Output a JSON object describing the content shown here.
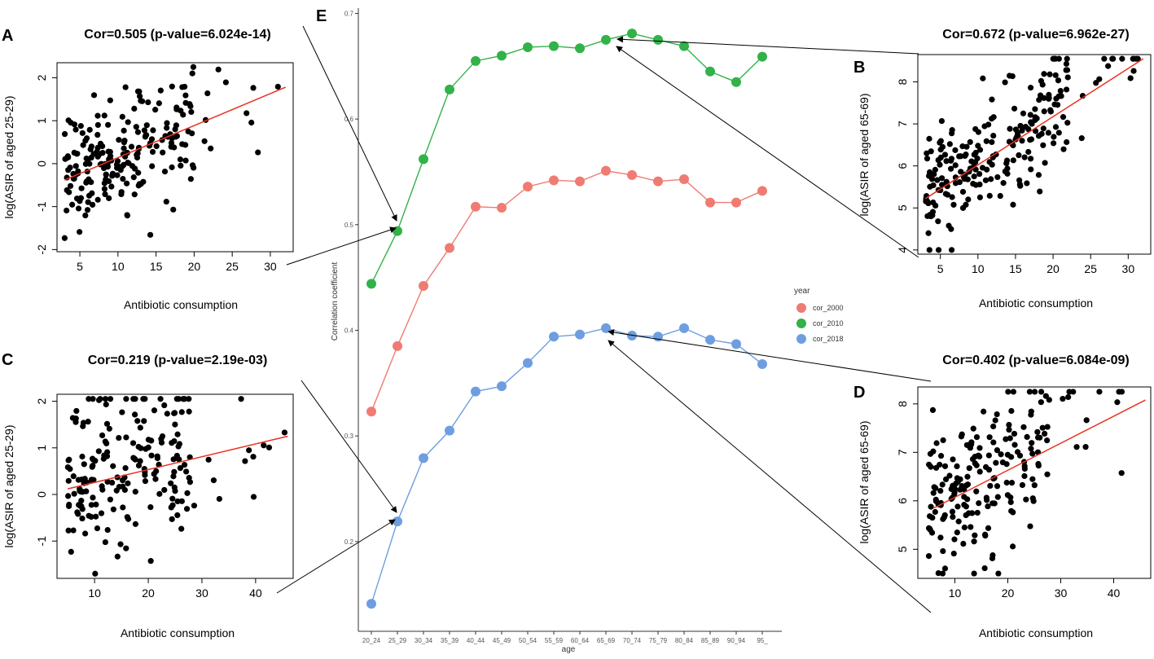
{
  "colors": {
    "c2000": "#f07b72",
    "c2010": "#32b249",
    "c2018": "#6e9ee0",
    "fit": "#e8311f",
    "point": "#000000"
  },
  "chart_data": [
    {
      "id": "E",
      "panel_label": "E",
      "type": "line",
      "title": "",
      "xlabel": "age",
      "ylabel": "Correlation coefficient",
      "categories": [
        "20_24",
        "25_29",
        "30_34",
        "35_39",
        "40_44",
        "45_49",
        "50_54",
        "55_59",
        "60_64",
        "65_69",
        "70_74",
        "75_79",
        "80_84",
        "85_89",
        "90_94",
        "95_"
      ],
      "ylim": [
        0.115,
        0.705
      ],
      "yticks": [
        "0.2",
        "0.3",
        "0.4",
        "0.5",
        "0.6",
        "0.7"
      ],
      "legend_title": "year",
      "legend_position": "right",
      "series": [
        {
          "name": "cor_2000",
          "color_key": "c2000",
          "values": [
            0.323,
            0.385,
            0.442,
            0.478,
            0.517,
            0.516,
            0.536,
            0.542,
            0.541,
            0.551,
            0.547,
            0.541,
            0.543,
            0.521,
            0.521,
            0.532
          ]
        },
        {
          "name": "cor_2010",
          "color_key": "c2010",
          "values": [
            0.444,
            0.494,
            0.562,
            0.628,
            0.655,
            0.66,
            0.668,
            0.669,
            0.667,
            0.675,
            0.681,
            0.675,
            0.669,
            0.645,
            0.635,
            0.659
          ]
        },
        {
          "name": "cor_2018",
          "color_key": "c2018",
          "values": [
            0.141,
            0.219,
            0.279,
            0.305,
            0.342,
            0.347,
            0.369,
            0.394,
            0.396,
            0.402,
            0.395,
            0.394,
            0.402,
            0.391,
            0.387,
            0.368
          ]
        }
      ]
    },
    {
      "id": "A",
      "panel_label": "A",
      "type": "scatter",
      "title": "Cor=0.505 (p-value=6.024e-14)",
      "xlabel": "Antibiotic consumption",
      "ylabel": "log(ASIR of aged 25-29)",
      "xlim": [
        2,
        33
      ],
      "ylim": [
        -2.05,
        2.35
      ],
      "xticks": [
        "5",
        "10",
        "15",
        "20",
        "25",
        "30"
      ],
      "yticks": [
        "-2",
        "-1",
        "0",
        "1",
        "2"
      ],
      "fit_line": {
        "x": [
          3,
          32
        ],
        "y": [
          -0.38,
          1.78
        ]
      },
      "seed": 11,
      "n_points": 220,
      "slope": 0.085,
      "intercept": -0.65,
      "noise": 0.7,
      "xdist": [
        3,
        20
      ]
    },
    {
      "id": "B",
      "panel_label": "B",
      "type": "scatter",
      "title": "Cor=0.672 (p-value=6.962e-27)",
      "xlabel": "Antibiotic consumption",
      "ylabel": "log(ASIR of aged 65-69)",
      "xlim": [
        2,
        33
      ],
      "ylim": [
        3.9,
        8.65
      ],
      "xticks": [
        "5",
        "10",
        "15",
        "20",
        "25",
        "30"
      ],
      "yticks": [
        "4",
        "5",
        "6",
        "7",
        "8"
      ],
      "fit_line": {
        "x": [
          3,
          32
        ],
        "y": [
          5.22,
          8.55
        ]
      },
      "seed": 23,
      "n_points": 230,
      "slope": 0.12,
      "intercept": 4.95,
      "noise": 0.65,
      "xdist": [
        3,
        22
      ]
    },
    {
      "id": "C",
      "panel_label": "C",
      "type": "scatter",
      "title": "Cor=0.219 (p-value=2.19e-03)",
      "xlabel": "Antibiotic consumption",
      "ylabel": "log(ASIR of aged 25-29)",
      "xlim": [
        3,
        47
      ],
      "ylim": [
        -1.8,
        2.15
      ],
      "xticks": [
        "10",
        "20",
        "30",
        "40"
      ],
      "yticks": [
        "-1",
        "0",
        "1",
        "2"
      ],
      "fit_line": {
        "x": [
          5,
          46
        ],
        "y": [
          0.12,
          1.25
        ]
      },
      "seed": 37,
      "n_points": 200,
      "slope": 0.03,
      "intercept": 0.05,
      "noise": 0.95,
      "xdist": [
        5,
        28
      ]
    },
    {
      "id": "D",
      "panel_label": "D",
      "type": "scatter",
      "title": "Cor=0.402 (p-value=6.084e-09)",
      "xlabel": "Antibiotic consumption",
      "ylabel": "log(ASIR of aged 65-69)",
      "xlim": [
        3,
        47
      ],
      "ylim": [
        4.4,
        8.35
      ],
      "xticks": [
        "10",
        "20",
        "30",
        "40"
      ],
      "yticks": [
        "5",
        "6",
        "7",
        "8"
      ],
      "fit_line": {
        "x": [
          6,
          46
        ],
        "y": [
          5.85,
          8.08
        ]
      },
      "seed": 53,
      "n_points": 200,
      "slope": 0.06,
      "intercept": 5.55,
      "noise": 0.85,
      "xdist": [
        5,
        28
      ]
    }
  ]
}
